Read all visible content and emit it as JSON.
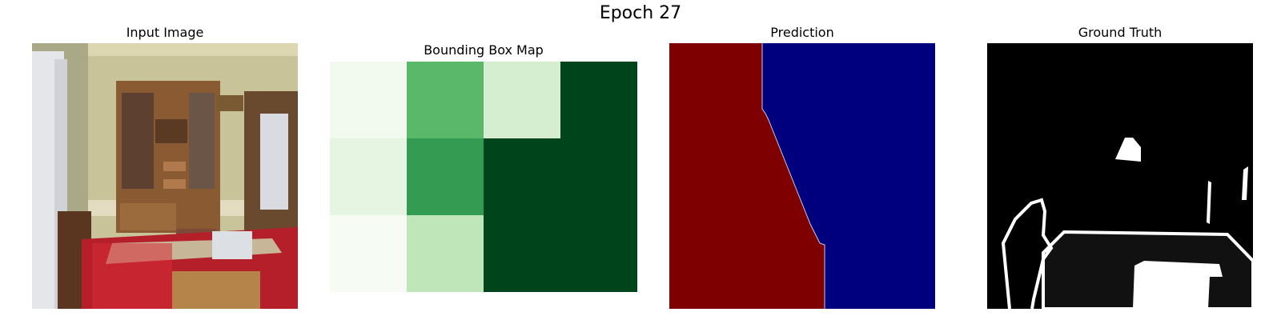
{
  "figure": {
    "title": "Epoch 27"
  },
  "panels": [
    {
      "title": "Input Image"
    },
    {
      "title": "Bounding Box Map"
    },
    {
      "title": "Prediction"
    },
    {
      "title": "Ground Truth"
    }
  ],
  "bbox_map": {
    "colormap": "Greens",
    "rows": 3,
    "cols": 4,
    "values": [
      [
        0.05,
        0.55,
        0.2,
        1.0
      ],
      [
        0.1,
        0.7,
        1.0,
        1.0
      ],
      [
        0.02,
        0.3,
        1.0,
        1.0
      ]
    ],
    "colors": [
      [
        "#f2f9ef",
        "#5ab86a",
        "#d6eed0",
        "#00441b"
      ],
      [
        "#e6f4e2",
        "#339b52",
        "#00441b",
        "#00441b"
      ],
      [
        "#f6fcf4",
        "#bfe6b9",
        "#00441b",
        "#00441b"
      ]
    ]
  },
  "prediction": {
    "colors": {
      "left_class": "#7f0000",
      "right_class": "#00007f"
    }
  },
  "ground_truth": {
    "colors": {
      "background": "#000000",
      "object": "#ffffff",
      "table_region": "#111111"
    }
  }
}
